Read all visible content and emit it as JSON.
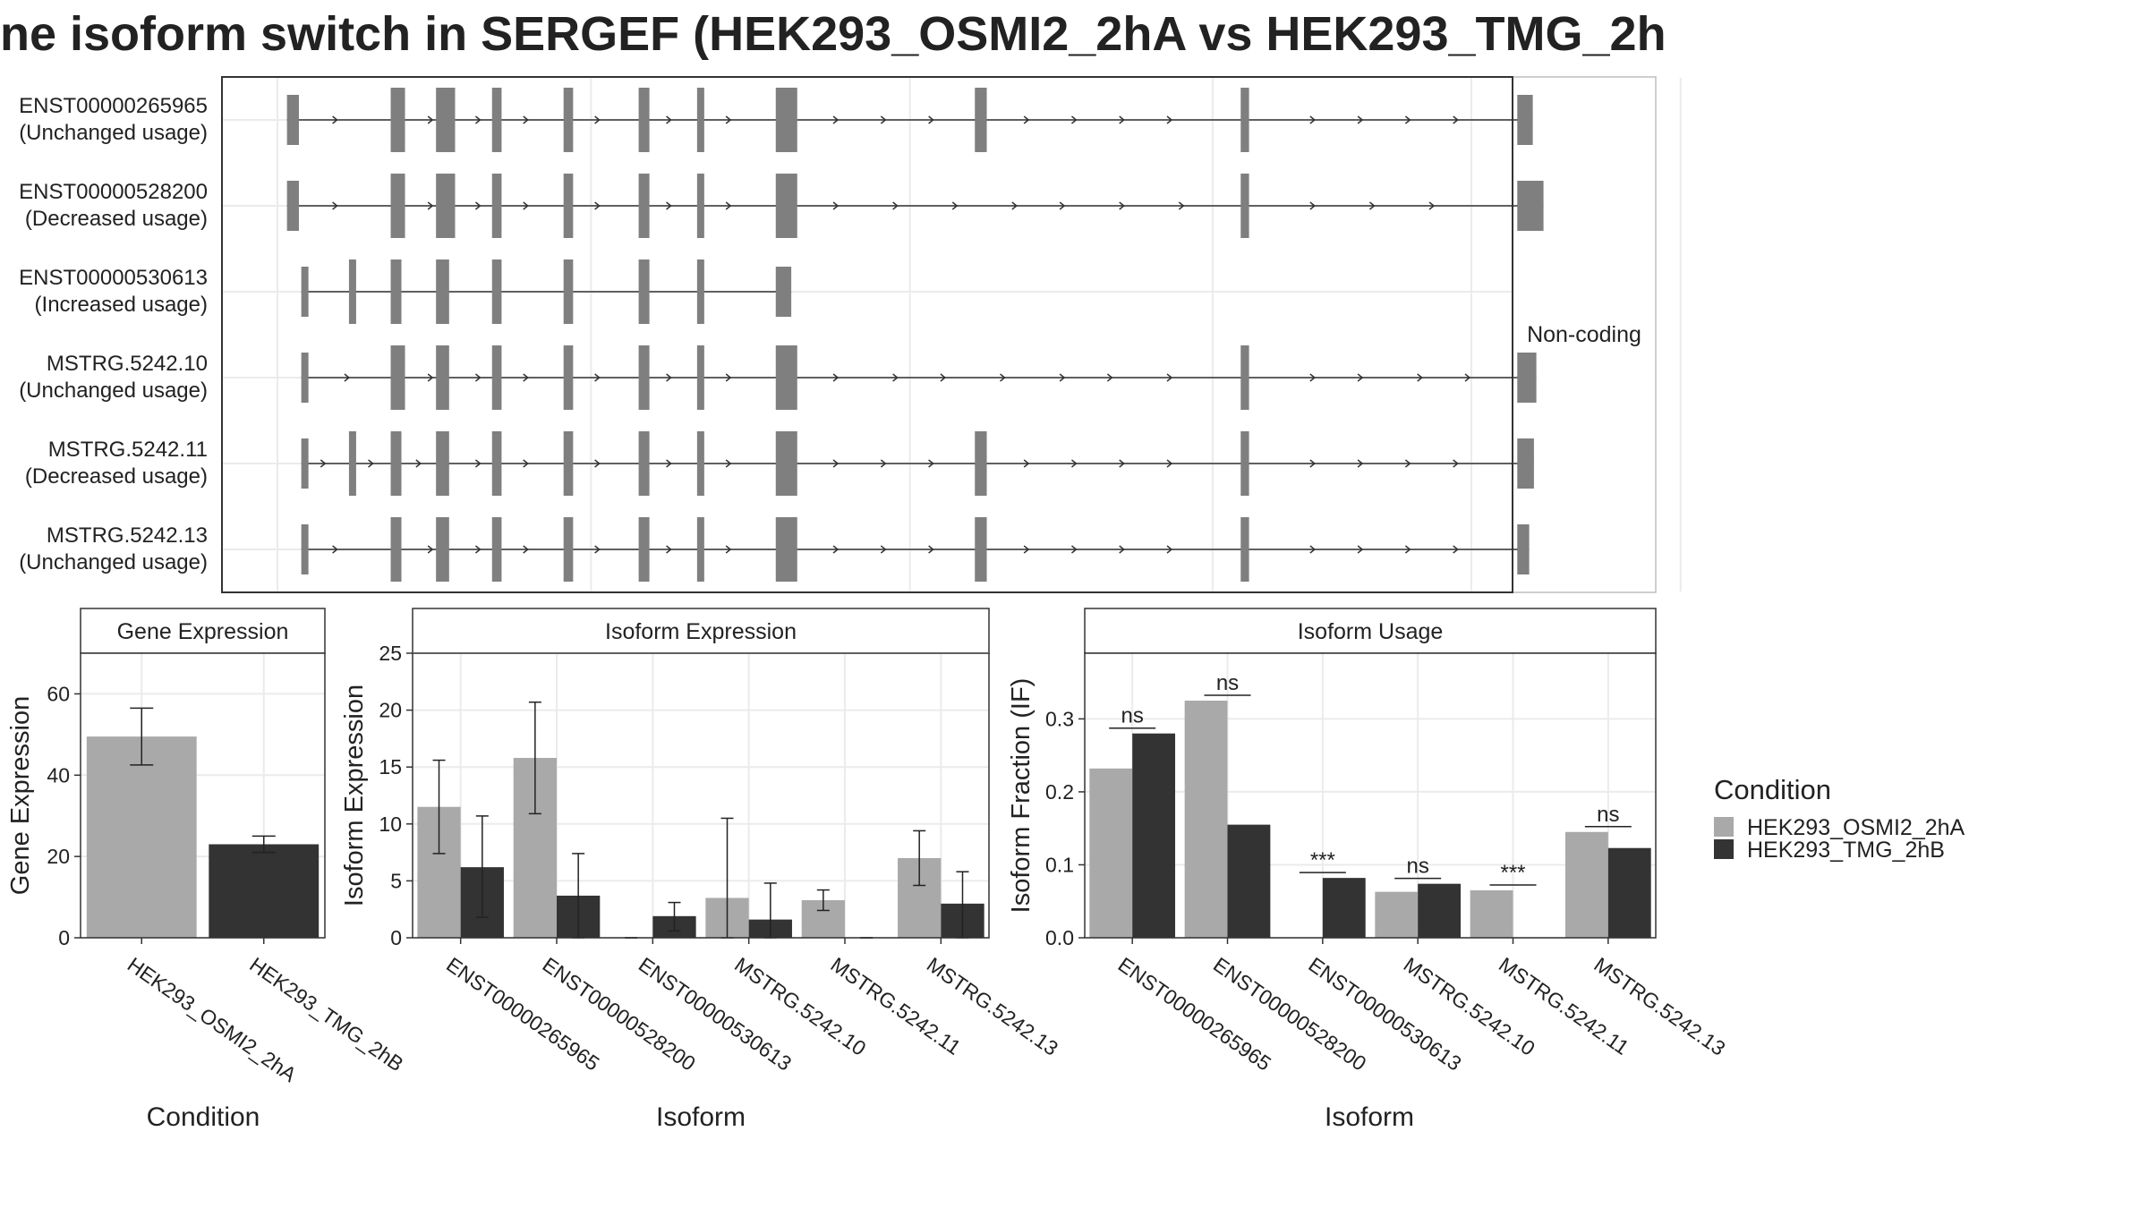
{
  "title": "ne isoform switch in SERGEF (HEK293_OSMI2_2hA vs HEK293_TMG_2h",
  "colors": {
    "cond_a": "#a9a9a9",
    "cond_b": "#333333",
    "exon": "#7f7f7f",
    "intron": "#333333",
    "grid": "#ebebeb",
    "panel_border": "#333333",
    "strip_fill": "#ffffff"
  },
  "transcript_panel": {
    "facet_label": "Non-coding",
    "transcripts": [
      {
        "id": "ENST00000265965",
        "usage": "(Unchanged usage)",
        "exons": [
          [
            0.008,
            0.018
          ],
          [
            0.095,
            0.107
          ],
          [
            0.133,
            0.149
          ],
          [
            0.18,
            0.188
          ],
          [
            0.24,
            0.248
          ],
          [
            0.303,
            0.312
          ],
          [
            0.352,
            0.358
          ],
          [
            0.418,
            0.436
          ],
          [
            0.585,
            0.595
          ],
          [
            0.808,
            0.815
          ],
          [
            1.04,
            1.053
          ]
        ],
        "arrows": [
          0.05,
          0.13,
          0.17,
          0.21,
          0.27,
          0.33,
          0.38,
          0.47,
          0.51,
          0.55,
          0.63,
          0.67,
          0.71,
          0.75,
          0.87,
          0.91,
          0.95,
          0.99
        ]
      },
      {
        "id": "ENST00000528200",
        "usage": "(Decreased usage)",
        "exons": [
          [
            0.008,
            0.018
          ],
          [
            0.095,
            0.107
          ],
          [
            0.133,
            0.149
          ],
          [
            0.18,
            0.188
          ],
          [
            0.24,
            0.248
          ],
          [
            0.303,
            0.312
          ],
          [
            0.352,
            0.358
          ],
          [
            0.418,
            0.436
          ],
          [
            0.808,
            0.815
          ],
          [
            1.04,
            1.062
          ]
        ],
        "arrows": [
          0.05,
          0.13,
          0.17,
          0.21,
          0.27,
          0.33,
          0.38,
          0.47,
          0.52,
          0.57,
          0.62,
          0.66,
          0.71,
          0.76,
          0.87,
          0.92,
          0.97
        ]
      },
      {
        "id": "ENST00000530613",
        "usage": "(Increased usage)",
        "exons": [
          [
            0.02,
            0.026
          ],
          [
            0.06,
            0.066
          ],
          [
            0.095,
            0.104
          ],
          [
            0.133,
            0.144
          ],
          [
            0.18,
            0.188
          ],
          [
            0.24,
            0.248
          ],
          [
            0.303,
            0.312
          ],
          [
            0.352,
            0.358
          ],
          [
            0.418,
            0.431
          ]
        ],
        "arrows": []
      },
      {
        "id": "MSTRG.5242.10",
        "usage": "(Unchanged usage)",
        "exons": [
          [
            0.02,
            0.026
          ],
          [
            0.095,
            0.107
          ],
          [
            0.133,
            0.144
          ],
          [
            0.18,
            0.188
          ],
          [
            0.24,
            0.248
          ],
          [
            0.303,
            0.312
          ],
          [
            0.352,
            0.358
          ],
          [
            0.418,
            0.436
          ],
          [
            0.808,
            0.815
          ],
          [
            1.04,
            1.056
          ]
        ],
        "arrows": [
          0.06,
          0.13,
          0.17,
          0.21,
          0.27,
          0.33,
          0.38,
          0.47,
          0.52,
          0.56,
          0.61,
          0.66,
          0.7,
          0.75,
          0.87,
          0.91,
          0.96,
          1.0
        ]
      },
      {
        "id": "MSTRG.5242.11",
        "usage": "(Decreased usage)",
        "exons": [
          [
            0.02,
            0.026
          ],
          [
            0.06,
            0.066
          ],
          [
            0.095,
            0.104
          ],
          [
            0.133,
            0.144
          ],
          [
            0.18,
            0.188
          ],
          [
            0.24,
            0.248
          ],
          [
            0.303,
            0.312
          ],
          [
            0.352,
            0.358
          ],
          [
            0.418,
            0.436
          ],
          [
            0.585,
            0.595
          ],
          [
            0.808,
            0.815
          ],
          [
            1.04,
            1.054
          ]
        ],
        "arrows": [
          0.04,
          0.08,
          0.12,
          0.17,
          0.21,
          0.27,
          0.33,
          0.38,
          0.47,
          0.51,
          0.55,
          0.63,
          0.67,
          0.71,
          0.75,
          0.87,
          0.91,
          0.95,
          0.99
        ]
      },
      {
        "id": "MSTRG.5242.13",
        "usage": "(Unchanged usage)",
        "exons": [
          [
            0.02,
            0.026
          ],
          [
            0.095,
            0.104
          ],
          [
            0.133,
            0.144
          ],
          [
            0.18,
            0.188
          ],
          [
            0.24,
            0.248
          ],
          [
            0.303,
            0.312
          ],
          [
            0.352,
            0.358
          ],
          [
            0.418,
            0.436
          ],
          [
            0.585,
            0.595
          ],
          [
            0.808,
            0.815
          ],
          [
            1.04,
            1.05
          ]
        ],
        "arrows": [
          0.05,
          0.13,
          0.17,
          0.21,
          0.27,
          0.33,
          0.38,
          0.47,
          0.51,
          0.55,
          0.63,
          0.67,
          0.71,
          0.75,
          0.87,
          0.91,
          0.95,
          0.99
        ]
      }
    ]
  },
  "legend": {
    "title": "Condition",
    "items": [
      "HEK293_OSMI2_2hA",
      "HEK293_TMG_2hB"
    ]
  },
  "chart_data": [
    {
      "type": "bar",
      "title": "Gene Expression",
      "xlabel": "Condition",
      "ylabel": "Gene Expression",
      "ylim": [
        0,
        70
      ],
      "yticks": [
        0,
        20,
        40,
        60
      ],
      "categories": [
        "HEK293_OSMI2_2hA",
        "HEK293_TMG_2hB"
      ],
      "values": [
        49.5,
        23
      ],
      "errors": [
        [
          42.5,
          56.5
        ],
        [
          21,
          25
        ]
      ]
    },
    {
      "type": "bar",
      "title": "Isoform Expression",
      "xlabel": "Isoform",
      "ylabel": "Isoform Expression",
      "ylim": [
        0,
        25
      ],
      "yticks": [
        0,
        5,
        10,
        15,
        20,
        25
      ],
      "categories": [
        "ENST00000265965",
        "ENST00000528200",
        "ENST00000530613",
        "MSTRG.5242.10",
        "MSTRG.5242.11",
        "MSTRG.5242.13"
      ],
      "series": [
        {
          "name": "HEK293_OSMI2_2hA",
          "values": [
            11.5,
            15.8,
            0,
            3.5,
            3.3,
            7.0
          ],
          "errors": [
            [
              7.4,
              15.6
            ],
            [
              10.9,
              20.7
            ],
            [
              0,
              0
            ],
            [
              0,
              10.5
            ],
            [
              2.4,
              4.2
            ],
            [
              4.6,
              9.4
            ]
          ]
        },
        {
          "name": "HEK293_TMG_2hB",
          "values": [
            6.2,
            3.7,
            1.9,
            1.6,
            0,
            3.0
          ],
          "errors": [
            [
              1.8,
              10.7
            ],
            [
              0,
              7.4
            ],
            [
              0.6,
              3.1
            ],
            [
              0,
              4.8
            ],
            [
              0,
              0
            ],
            [
              0,
              5.8
            ]
          ]
        }
      ]
    },
    {
      "type": "bar",
      "title": "Isoform Usage",
      "xlabel": "Isoform",
      "ylabel": "Isoform Fraction (IF)",
      "ylim": [
        0,
        0.39
      ],
      "yticks": [
        0.0,
        0.1,
        0.2,
        0.3
      ],
      "categories": [
        "ENST00000265965",
        "ENST00000528200",
        "ENST00000530613",
        "MSTRG.5242.10",
        "MSTRG.5242.11",
        "MSTRG.5242.13"
      ],
      "series": [
        {
          "name": "HEK293_OSMI2_2hA",
          "values": [
            0.232,
            0.325,
            0,
            0.063,
            0.065,
            0.145
          ]
        },
        {
          "name": "HEK293_TMG_2hB",
          "values": [
            0.28,
            0.155,
            0.082,
            0.074,
            0,
            0.123
          ]
        }
      ],
      "significance": [
        "ns",
        "ns",
        "***",
        "ns",
        "***",
        "ns"
      ]
    }
  ]
}
